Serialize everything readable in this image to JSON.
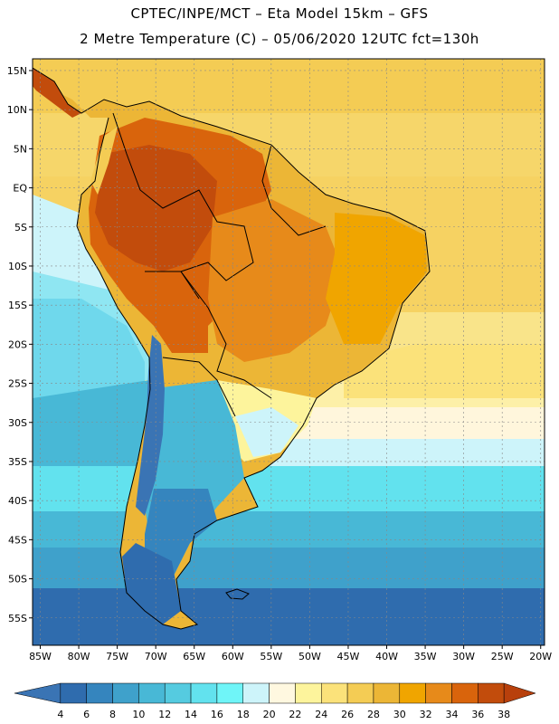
{
  "header": {
    "title_line1": "CPTEC/INPE/MCT –  Eta Model 15km – GFS",
    "title_line2": "2 Metre Temperature (C) – 05/06/2020 12UTC fct=130h"
  },
  "map": {
    "variable": "2 Metre Temperature",
    "units": "C",
    "model": "Eta 15km",
    "extent": {
      "lon_min": -86,
      "lon_max": -19.5,
      "lat_min": -58.5,
      "lat_max": 16.5
    },
    "lat_ticks": [
      {
        "value": 15,
        "label": "15N"
      },
      {
        "value": 10,
        "label": "10N"
      },
      {
        "value": 5,
        "label": "5N"
      },
      {
        "value": 0,
        "label": "EQ"
      },
      {
        "value": -5,
        "label": "5S"
      },
      {
        "value": -10,
        "label": "10S"
      },
      {
        "value": -15,
        "label": "15S"
      },
      {
        "value": -20,
        "label": "20S"
      },
      {
        "value": -25,
        "label": "25S"
      },
      {
        "value": -30,
        "label": "30S"
      },
      {
        "value": -35,
        "label": "35S"
      },
      {
        "value": -40,
        "label": "40S"
      },
      {
        "value": -45,
        "label": "45S"
      },
      {
        "value": -50,
        "label": "50S"
      },
      {
        "value": -55,
        "label": "55S"
      }
    ],
    "lon_ticks": [
      {
        "value": -85,
        "label": "85W"
      },
      {
        "value": -80,
        "label": "80W"
      },
      {
        "value": -75,
        "label": "75W"
      },
      {
        "value": -70,
        "label": "70W"
      },
      {
        "value": -65,
        "label": "65W"
      },
      {
        "value": -60,
        "label": "60W"
      },
      {
        "value": -55,
        "label": "55W"
      },
      {
        "value": -50,
        "label": "50W"
      },
      {
        "value": -45,
        "label": "45W"
      },
      {
        "value": -40,
        "label": "40W"
      },
      {
        "value": -35,
        "label": "35W"
      },
      {
        "value": -30,
        "label": "30W"
      },
      {
        "value": -25,
        "label": "25W"
      },
      {
        "value": -20,
        "label": "20W"
      }
    ]
  },
  "colorbar": {
    "labels": [
      "4",
      "6",
      "8",
      "10",
      "12",
      "14",
      "16",
      "18",
      "20",
      "22",
      "24",
      "26",
      "28",
      "30",
      "32",
      "34",
      "36",
      "38"
    ],
    "colors": [
      "#3a74b4",
      "#2f6cae",
      "#3585be",
      "#3fa1cb",
      "#48b8d6",
      "#55cbe0",
      "#62e2ee",
      "#6ff5f8",
      "#cdf4fa",
      "#fff8e0",
      "#fdf49c",
      "#fbe27a",
      "#f4cc54",
      "#ecb636",
      "#f0a500",
      "#e78a1a",
      "#d9640c",
      "#c24c0c",
      "#b8400c"
    ]
  }
}
